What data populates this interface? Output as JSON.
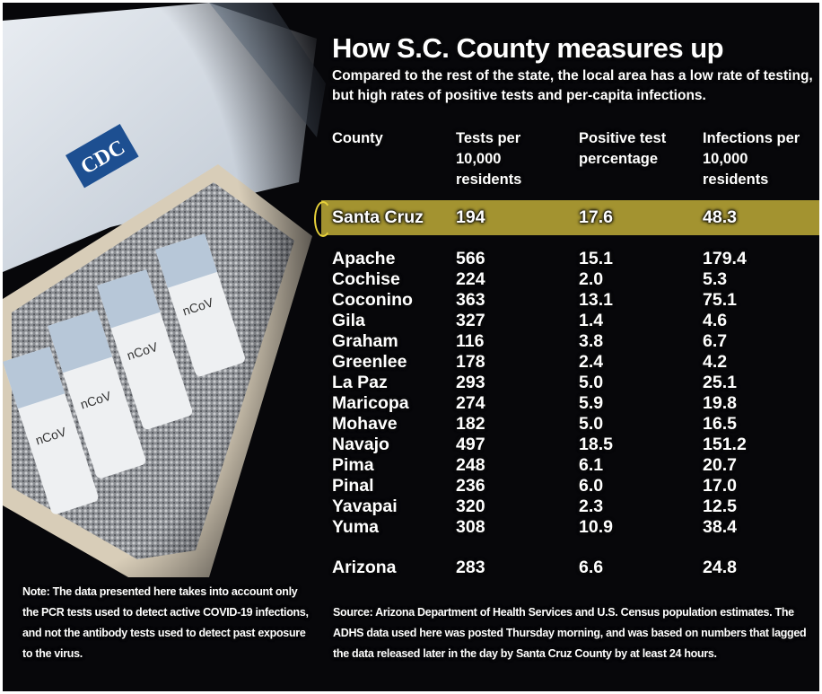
{
  "title": "How S.C. County measures up",
  "subtitle": "Compared to the rest of the state, the local area has a low rate of testing, but high rates of positive tests and per-capita infections.",
  "photo": {
    "logo_text": "CDC",
    "vial_label": "nCoV"
  },
  "colors": {
    "highlight": "#a39330",
    "background": "#07070a",
    "text": "#ffffff"
  },
  "chart_data": {
    "type": "table",
    "columns": [
      "County",
      "Tests per 10,000 residents",
      "Positive test percentage",
      "Infections per 10,000 residents"
    ],
    "highlight": {
      "county": "Santa Cruz",
      "tests": "194",
      "positive": "17.6",
      "infections": "48.3"
    },
    "rows": [
      {
        "county": "Apache",
        "tests": "566",
        "positive": "15.1",
        "infections": "179.4"
      },
      {
        "county": "Cochise",
        "tests": "224",
        "positive": "2.0",
        "infections": "5.3"
      },
      {
        "county": "Coconino",
        "tests": "363",
        "positive": "13.1",
        "infections": "75.1"
      },
      {
        "county": "Gila",
        "tests": "327",
        "positive": "1.4",
        "infections": "4.6"
      },
      {
        "county": "Graham",
        "tests": "116",
        "positive": "3.8",
        "infections": "6.7"
      },
      {
        "county": "Greenlee",
        "tests": "178",
        "positive": "2.4",
        "infections": "4.2"
      },
      {
        "county": "La Paz",
        "tests": "293",
        "positive": "5.0",
        "infections": "25.1"
      },
      {
        "county": "Maricopa",
        "tests": "274",
        "positive": "5.9",
        "infections": "19.8"
      },
      {
        "county": "Mohave",
        "tests": "182",
        "positive": "5.0",
        "infections": "16.5"
      },
      {
        "county": "Navajo",
        "tests": "497",
        "positive": "18.5",
        "infections": "151.2"
      },
      {
        "county": "Pima",
        "tests": "248",
        "positive": "6.1",
        "infections": "20.7"
      },
      {
        "county": "Pinal",
        "tests": "236",
        "positive": "6.0",
        "infections": "17.0"
      },
      {
        "county": "Yavapai",
        "tests": "320",
        "positive": "2.3",
        "infections": "12.5"
      },
      {
        "county": "Yuma",
        "tests": "308",
        "positive": "10.9",
        "infections": "38.4"
      }
    ],
    "total": {
      "county": "Arizona",
      "tests": "283",
      "positive": "6.6",
      "infections": "24.8"
    }
  },
  "note": "Note: The data presented here takes into account only the PCR tests used to detect active COVID-19 infections, and not the antibody tests used to detect past exposure to the virus.",
  "source": "Source: Arizona Department of Health Services and U.S. Census population estimates. The ADHS data used here was posted Thursday morning, and was based on numbers that lagged the data released later in the day by Santa Cruz County by at least 24 hours."
}
